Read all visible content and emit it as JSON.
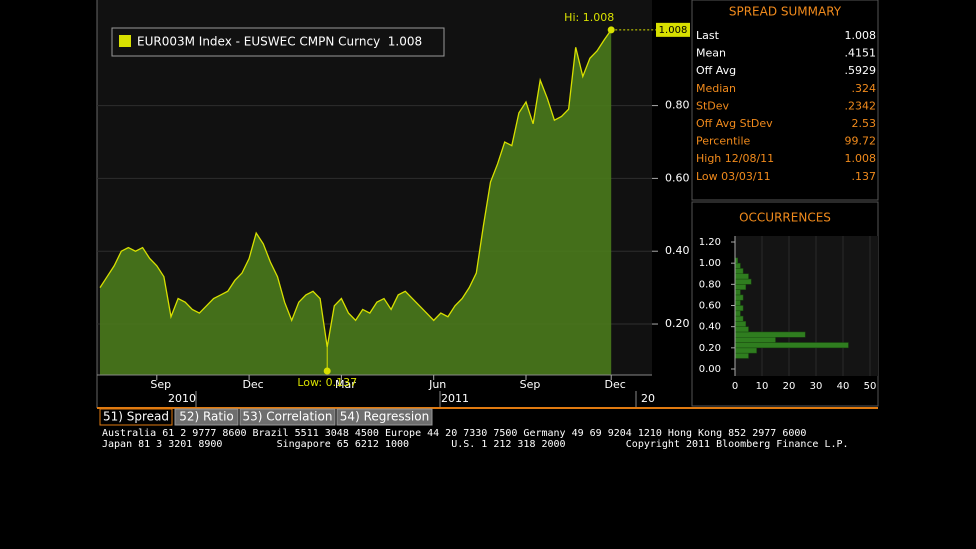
{
  "chart_data": [
    {
      "type": "area",
      "legend": "EUR003M Index - EUSWEC CMPN Curncy  1.008",
      "categories": [
        null,
        null,
        null,
        null,
        null,
        null,
        null,
        null,
        "Sep",
        null,
        null,
        null,
        null,
        null,
        null,
        null,
        null,
        null,
        null,
        null,
        null,
        "Dec",
        null,
        null,
        null,
        null,
        null,
        null,
        null,
        null,
        null,
        null,
        null,
        null,
        "Mar",
        null,
        null,
        null,
        null,
        null,
        null,
        null,
        null,
        null,
        null,
        null,
        null,
        "Jun",
        null,
        null,
        null,
        null,
        null,
        null,
        null,
        null,
        null,
        null,
        null,
        null,
        "Sep",
        null,
        null,
        null,
        null,
        null,
        null,
        null,
        null,
        null,
        null,
        null,
        "Dec"
      ],
      "years": [
        "2010",
        "2011",
        "20"
      ],
      "values": [
        0.3,
        0.33,
        0.36,
        0.4,
        0.41,
        0.4,
        0.41,
        0.38,
        0.36,
        0.33,
        0.22,
        0.27,
        0.26,
        0.24,
        0.23,
        0.25,
        0.27,
        0.28,
        0.29,
        0.32,
        0.34,
        0.38,
        0.45,
        0.42,
        0.37,
        0.33,
        0.26,
        0.21,
        0.26,
        0.28,
        0.29,
        0.27,
        0.137,
        0.25,
        0.27,
        0.23,
        0.21,
        0.24,
        0.23,
        0.26,
        0.27,
        0.24,
        0.28,
        0.29,
        0.27,
        0.25,
        0.23,
        0.21,
        0.23,
        0.22,
        0.25,
        0.27,
        0.3,
        0.34,
        0.47,
        0.59,
        0.64,
        0.7,
        0.69,
        0.78,
        0.81,
        0.75,
        0.87,
        0.82,
        0.76,
        0.77,
        0.79,
        0.96,
        0.88,
        0.93,
        0.95,
        0.98,
        1.008
      ],
      "color": "#d8e000",
      "area_color": "#4a7a1c",
      "annotations": [
        {
          "label": "Hi: 1.008"
        },
        {
          "label": "Low: 0.137"
        }
      ],
      "last_label": "1.008",
      "ylim": [
        0.06,
        1.09
      ],
      "yticks": [
        {
          "value": 0.2,
          "label": "0.20"
        },
        {
          "value": 0.4,
          "label": "0.40"
        },
        {
          "value": 0.6,
          "label": "0.60"
        },
        {
          "value": 0.8,
          "label": "0.80"
        }
      ],
      "grid": true
    },
    {
      "type": "histogram",
      "title": "OCCURRENCES",
      "orientation": "horizontal",
      "bins": [
        0.1,
        0.15,
        0.2,
        0.25,
        0.3,
        0.35,
        0.4,
        0.45,
        0.5,
        0.55,
        0.6,
        0.65,
        0.7,
        0.75,
        0.8,
        0.85,
        0.9,
        0.95,
        1.0,
        1.05
      ],
      "values": [
        5,
        8,
        42,
        15,
        26,
        5,
        4,
        3,
        2,
        3,
        2,
        3,
        2,
        4,
        6,
        5,
        3,
        2,
        1
      ],
      "color": "#2f7d1f",
      "ylim": [
        0,
        1.2
      ],
      "yticks": [
        {
          "value": 0,
          "label": "0.00"
        },
        {
          "value": 0.2,
          "label": "0.20"
        },
        {
          "value": 0.4,
          "label": "0.40"
        },
        {
          "value": 0.6,
          "label": "0.60"
        },
        {
          "value": 0.8,
          "label": "0.80"
        },
        {
          "value": 1.0,
          "label": "1.00"
        },
        {
          "value": 1.2,
          "label": "1.20"
        }
      ],
      "xlim": [
        0,
        50
      ],
      "xticks": [
        0,
        10,
        20,
        30,
        40,
        50
      ]
    }
  ],
  "summary": {
    "title": "SPREAD SUMMARY",
    "rows": [
      {
        "label": "Last",
        "value": "1.008",
        "color": "#ffffff"
      },
      {
        "label": "Mean",
        "value": ".4151",
        "color": "#ffffff"
      },
      {
        "label": "Off Avg",
        "value": ".5929",
        "color": "#ffffff"
      },
      {
        "label": "Median",
        "value": ".324",
        "color": "#f08a1c"
      },
      {
        "label": "StDev",
        "value": ".2342",
        "color": "#f08a1c"
      },
      {
        "label": "Off Avg StDev",
        "value": "2.53",
        "color": "#f08a1c"
      },
      {
        "label": "Percentile",
        "value": "99.72",
        "color": "#f08a1c"
      },
      {
        "label": "High 12/08/11",
        "value": "1.008",
        "color": "#f08a1c"
      },
      {
        "label": "Low 03/03/11",
        "value": ".137",
        "color": "#f08a1c"
      }
    ]
  },
  "tabs": [
    "51) Spread",
    "52) Ratio",
    "53) Correlation",
    "54) Regression"
  ],
  "footer": [
    "Australia 61 2 9777 8600 Brazil 5511 3048 4500 Europe 44 20 7330 7500 Germany 49 69 9204 1210 Hong Kong 852 2977 6000",
    "Japan 81 3 3201 8900         Singapore 65 6212 1000       U.S. 1 212 318 2000          Copyright 2011 Bloomberg Finance L.P."
  ]
}
